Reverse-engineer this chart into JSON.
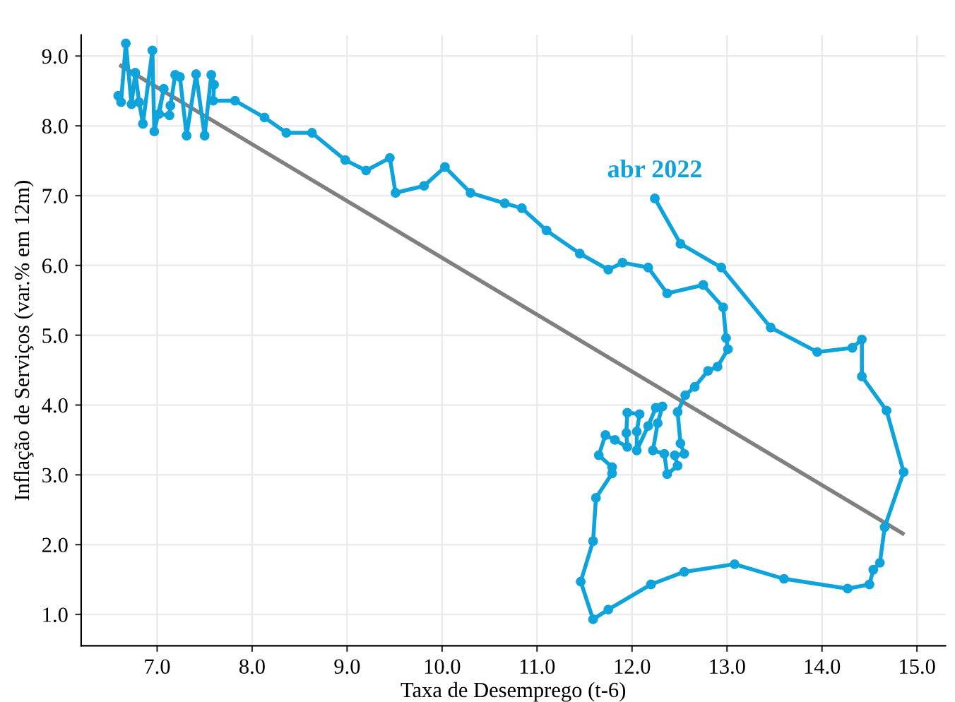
{
  "chart_data": {
    "type": "line",
    "xlabel": "Taxa de Desemprego (t-6)",
    "ylabel": "Inflação de Serviços (var.% em 12m)",
    "xlim": [
      6.2,
      15.3
    ],
    "ylim": [
      0.55,
      9.3
    ],
    "xticks": [
      {
        "value": 7,
        "label": "7.0"
      },
      {
        "value": 8,
        "label": "8.0"
      },
      {
        "value": 9,
        "label": "9.0"
      },
      {
        "value": 10,
        "label": "10.0"
      },
      {
        "value": 11,
        "label": "11.0"
      },
      {
        "value": 12,
        "label": "12.0"
      },
      {
        "value": 13,
        "label": "13.0"
      },
      {
        "value": 14,
        "label": "14.0"
      },
      {
        "value": 15,
        "label": "15.0"
      }
    ],
    "yticks": [
      {
        "value": 1,
        "label": "1.0"
      },
      {
        "value": 2,
        "label": "2.0"
      },
      {
        "value": 3,
        "label": "3.0"
      },
      {
        "value": 4,
        "label": "4.0"
      },
      {
        "value": 5,
        "label": "5.0"
      },
      {
        "value": 6,
        "label": "6.0"
      },
      {
        "value": 7,
        "label": "7.0"
      },
      {
        "value": 8,
        "label": "8.0"
      },
      {
        "value": 9,
        "label": "9.0"
      }
    ],
    "grid": true,
    "legend": false,
    "series": [
      {
        "color": "#808080",
        "marker": "none",
        "x": [
          6.62,
          14.85
        ],
        "values": [
          8.86,
          2.16
        ]
      },
      {
        "color": "#0fa3dc",
        "marker": "circle",
        "x": [
          6.59,
          6.62,
          6.67,
          6.73,
          6.77,
          6.81,
          6.85,
          6.95,
          6.97,
          7.07,
          7.02,
          7.13,
          7.14,
          7.19,
          7.24,
          7.31,
          7.41,
          7.5,
          7.57,
          7.6,
          7.59,
          7.82,
          8.13,
          8.36,
          8.63,
          8.98,
          9.2,
          9.45,
          9.51,
          9.81,
          10.03,
          10.3,
          10.66,
          10.84,
          11.1,
          11.45,
          11.75,
          11.9,
          12.17,
          12.37,
          12.75,
          12.96,
          12.99,
          13.01,
          12.9,
          12.8,
          12.66,
          12.56,
          12.48,
          12.51,
          12.55,
          12.45,
          12.48,
          12.37,
          12.34,
          12.22,
          12.27,
          12.32,
          12.25,
          12.17,
          12.05,
          12.05,
          12.08,
          11.95,
          11.94,
          11.95,
          11.82,
          11.72,
          11.65,
          11.79,
          11.79,
          11.62,
          11.59,
          11.46,
          11.59,
          11.75,
          12.2,
          12.55,
          13.08,
          13.6,
          14.27,
          14.5,
          14.54,
          14.61,
          14.66,
          14.86,
          14.68,
          14.42,
          14.42,
          14.32,
          13.95,
          13.46,
          12.94,
          12.51,
          12.24
        ],
        "values": [
          8.43,
          8.34,
          9.18,
          8.31,
          8.76,
          8.34,
          8.03,
          9.08,
          7.92,
          8.53,
          8.17,
          8.15,
          8.29,
          8.73,
          8.7,
          7.86,
          8.74,
          7.86,
          8.73,
          8.59,
          8.36,
          8.36,
          8.12,
          7.9,
          7.9,
          7.51,
          7.36,
          7.54,
          7.04,
          7.14,
          7.41,
          7.04,
          6.89,
          6.82,
          6.5,
          6.17,
          5.94,
          6.04,
          5.97,
          5.6,
          5.72,
          5.4,
          4.96,
          4.8,
          4.55,
          4.49,
          4.26,
          4.14,
          3.9,
          3.45,
          3.3,
          3.28,
          3.13,
          3.01,
          3.3,
          3.35,
          3.74,
          3.98,
          3.96,
          3.7,
          3.35,
          3.62,
          3.87,
          3.89,
          3.6,
          3.4,
          3.5,
          3.57,
          3.28,
          3.11,
          3.02,
          2.67,
          2.05,
          1.47,
          0.93,
          1.07,
          1.43,
          1.61,
          1.72,
          1.51,
          1.37,
          1.43,
          1.64,
          1.74,
          2.25,
          3.04,
          3.92,
          4.41,
          4.94,
          4.82,
          4.76,
          5.11,
          5.97,
          6.31,
          6.96
        ]
      }
    ],
    "annotations": [
      {
        "text": "abr 2022",
        "x": 12.24,
        "y": 6.96
      }
    ]
  }
}
